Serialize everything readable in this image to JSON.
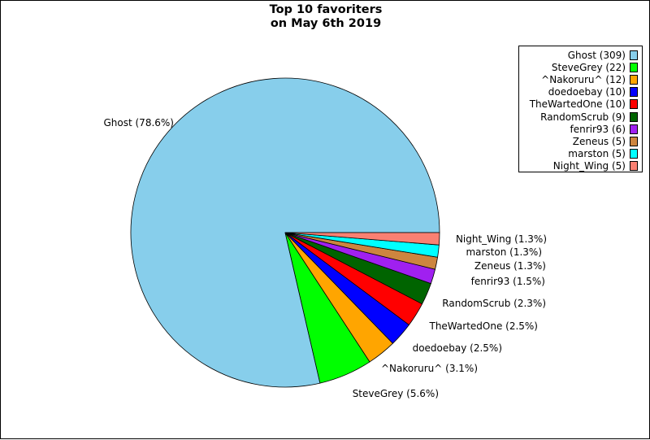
{
  "chart_data": {
    "type": "pie",
    "title": [
      "Top 10 favoriters",
      "on May 6th 2019"
    ],
    "legend_position": "top-right",
    "slices": [
      {
        "legend": "Ghost (309)",
        "label": "Ghost (78.6%)",
        "value": 309,
        "percent": 78.6,
        "color": "#87ceeb"
      },
      {
        "legend": "SteveGrey (22)",
        "label": "SteveGrey (5.6%)",
        "value": 22,
        "percent": 5.6,
        "color": "#00ff00"
      },
      {
        "legend": "^Nakoruru^ (12)",
        "label": "^Nakoruru^ (3.1%)",
        "value": 12,
        "percent": 3.1,
        "color": "#ffa500"
      },
      {
        "legend": "doedoebay (10)",
        "label": "doedoebay (2.5%)",
        "value": 10,
        "percent": 2.5,
        "color": "#0000ff"
      },
      {
        "legend": "TheWartedOne (10)",
        "label": "TheWartedOne (2.5%)",
        "value": 10,
        "percent": 2.5,
        "color": "#ff0000"
      },
      {
        "legend": "RandomScrub (9)",
        "label": "RandomScrub (2.3%)",
        "value": 9,
        "percent": 2.3,
        "color": "#006400"
      },
      {
        "legend": "fenrir93 (6)",
        "label": "fenrir93 (1.5%)",
        "value": 6,
        "percent": 1.5,
        "color": "#a020f0"
      },
      {
        "legend": "Zeneus (5)",
        "label": "Zeneus (1.3%)",
        "value": 5,
        "percent": 1.3,
        "color": "#cd853f"
      },
      {
        "legend": "marston (5)",
        "label": "marston (1.3%)",
        "value": 5,
        "percent": 1.3,
        "color": "#00ffff"
      },
      {
        "legend": "Night_Wing (5)",
        "label": "Night_Wing (1.3%)",
        "value": 5,
        "percent": 1.3,
        "color": "#fa8072"
      }
    ]
  }
}
